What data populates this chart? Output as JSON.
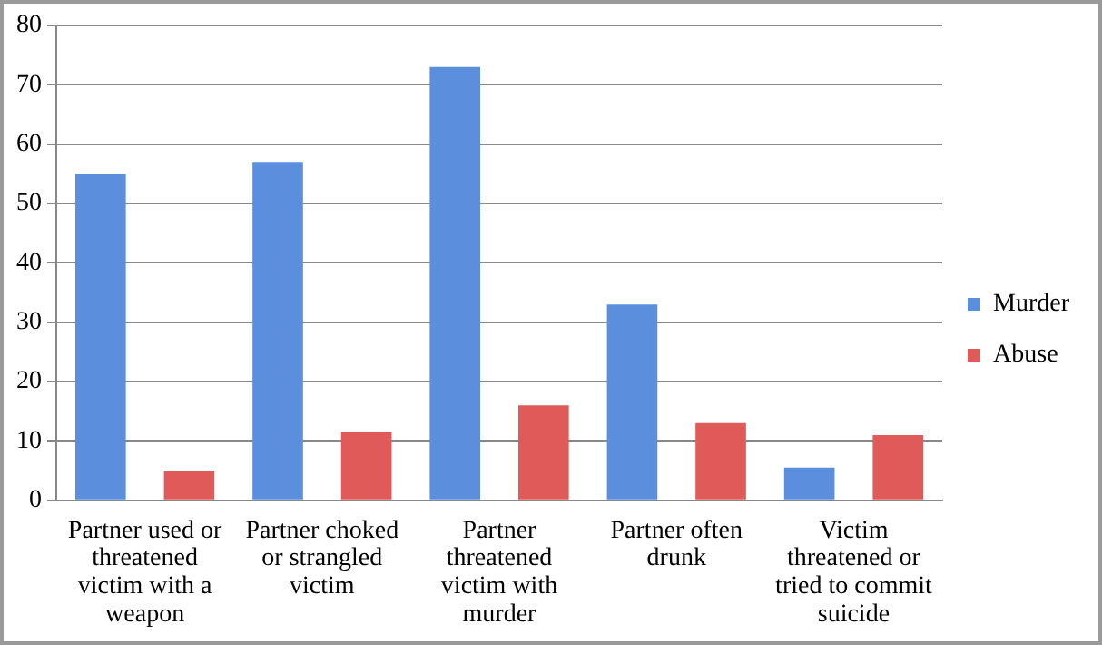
{
  "chart_data": {
    "type": "bar",
    "categories": [
      "Partner used or threatened victim with a weapon",
      "Partner choked or strangled victim",
      "Partner threatened victim with murder",
      "Partner often drunk",
      "Victim threatened or tried to commit suicide"
    ],
    "series": [
      {
        "name": "Murder",
        "color": "#5b8fde",
        "values": [
          55,
          57,
          73,
          33,
          5.5
        ]
      },
      {
        "name": "Abuse",
        "color": "#e05a5a",
        "values": [
          5,
          11.5,
          16,
          13,
          11
        ]
      }
    ],
    "ylim": [
      0,
      80
    ],
    "yticks": [
      0,
      10,
      20,
      30,
      40,
      50,
      60,
      70,
      80
    ],
    "grid": "y",
    "legend": "right"
  }
}
